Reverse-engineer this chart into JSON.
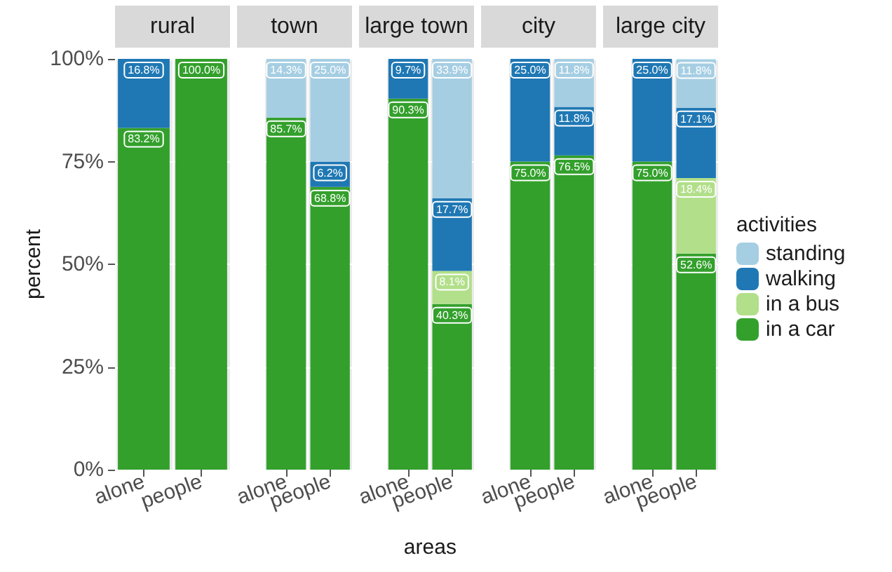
{
  "chart_data": [
    {
      "type": "bar",
      "title": "rural",
      "ylabel": "percent",
      "categories": [
        "alone",
        "people"
      ],
      "stacked": true,
      "ylim": [
        0,
        100
      ],
      "yticks": [
        {
          "value": 0,
          "label": "0%"
        },
        {
          "value": 25,
          "label": "25%"
        },
        {
          "value": 50,
          "label": "50%"
        },
        {
          "value": 75,
          "label": "75%"
        },
        {
          "value": 100,
          "label": "100%"
        }
      ],
      "grid": true,
      "series": [
        {
          "color": "#33a02c",
          "values": [
            83.2,
            100.0
          ],
          "value_labels": [
            "83.2%",
            "100.0%"
          ]
        },
        {
          "color": "#b2df8a",
          "values": [
            null,
            null
          ],
          "value_labels": [
            null,
            null
          ]
        },
        {
          "color": "#1f78b4",
          "values": [
            16.8,
            null
          ],
          "value_labels": [
            "16.8%",
            null
          ]
        },
        {
          "color": "#a6cee3",
          "values": [
            null,
            null
          ],
          "value_labels": [
            null,
            null
          ]
        }
      ]
    },
    {
      "type": "bar",
      "title": "town",
      "categories": [
        "alone",
        "people"
      ],
      "stacked": true,
      "ylim": [
        0,
        100
      ],
      "yticks": [
        0,
        25,
        50,
        75,
        100
      ],
      "grid": true,
      "tick_labels": "x",
      "series": [
        {
          "color": "#33a02c",
          "values": [
            85.7,
            68.8
          ],
          "value_labels": [
            "85.7%",
            "68.8%"
          ]
        },
        {
          "color": "#b2df8a",
          "values": [
            null,
            null
          ],
          "value_labels": [
            null,
            null
          ]
        },
        {
          "color": "#1f78b4",
          "values": [
            null,
            6.2
          ],
          "value_labels": [
            null,
            "6.2%"
          ]
        },
        {
          "color": "#a6cee3",
          "values": [
            14.3,
            25.0
          ],
          "value_labels": [
            "14.3%",
            "25.0%"
          ]
        }
      ]
    },
    {
      "type": "bar",
      "title": "large town",
      "xlabel": "areas",
      "categories": [
        "alone",
        "people"
      ],
      "stacked": true,
      "ylim": [
        0,
        100
      ],
      "yticks": [
        0,
        25,
        50,
        75,
        100
      ],
      "grid": true,
      "tick_labels": "x",
      "series": [
        {
          "color": "#33a02c",
          "values": [
            90.3,
            40.3
          ],
          "value_labels": [
            "90.3%",
            "40.3%"
          ]
        },
        {
          "color": "#b2df8a",
          "values": [
            null,
            8.1
          ],
          "value_labels": [
            null,
            "8.1%"
          ]
        },
        {
          "color": "#1f78b4",
          "values": [
            9.7,
            17.7
          ],
          "value_labels": [
            "9.7%",
            "17.7%"
          ]
        },
        {
          "color": "#a6cee3",
          "values": [
            null,
            33.9
          ],
          "value_labels": [
            null,
            "33.9%"
          ]
        }
      ]
    },
    {
      "type": "bar",
      "title": "city",
      "categories": [
        "alone",
        "people"
      ],
      "stacked": true,
      "ylim": [
        0,
        100
      ],
      "yticks": [
        0,
        25,
        50,
        75,
        100
      ],
      "grid": true,
      "tick_labels": "x",
      "series": [
        {
          "color": "#33a02c",
          "values": [
            75.0,
            76.5
          ],
          "value_labels": [
            "75.0%",
            "76.5%"
          ]
        },
        {
          "color": "#b2df8a",
          "values": [
            null,
            null
          ],
          "value_labels": [
            null,
            null
          ]
        },
        {
          "color": "#1f78b4",
          "values": [
            25.0,
            11.8
          ],
          "value_labels": [
            "25.0%",
            "11.8%"
          ]
        },
        {
          "color": "#a6cee3",
          "values": [
            null,
            11.8
          ],
          "value_labels": [
            null,
            "11.8%"
          ]
        }
      ]
    },
    {
      "type": "bar",
      "title": "large city",
      "legend_title": "activities",
      "categories": [
        "alone",
        "people"
      ],
      "stacked": true,
      "ylim": [
        0,
        100
      ],
      "yticks": [
        0,
        25,
        50,
        75,
        100
      ],
      "grid": true,
      "legend": "right",
      "tick_labels": "x",
      "series": [
        {
          "name": "in a car",
          "color": "#33a02c",
          "values": [
            75.0,
            52.6
          ],
          "value_labels": [
            "75.0%",
            "52.6%"
          ]
        },
        {
          "name": "in a bus",
          "color": "#b2df8a",
          "values": [
            null,
            18.4
          ],
          "value_labels": [
            null,
            "18.4%"
          ]
        },
        {
          "name": "walking",
          "color": "#1f78b4",
          "values": [
            25.0,
            17.1
          ],
          "value_labels": [
            "25.0%",
            "17.1%"
          ]
        },
        {
          "name": "standing",
          "color": "#a6cee3",
          "values": [
            null,
            11.8
          ],
          "value_labels": [
            null,
            "11.8%"
          ]
        }
      ]
    }
  ]
}
